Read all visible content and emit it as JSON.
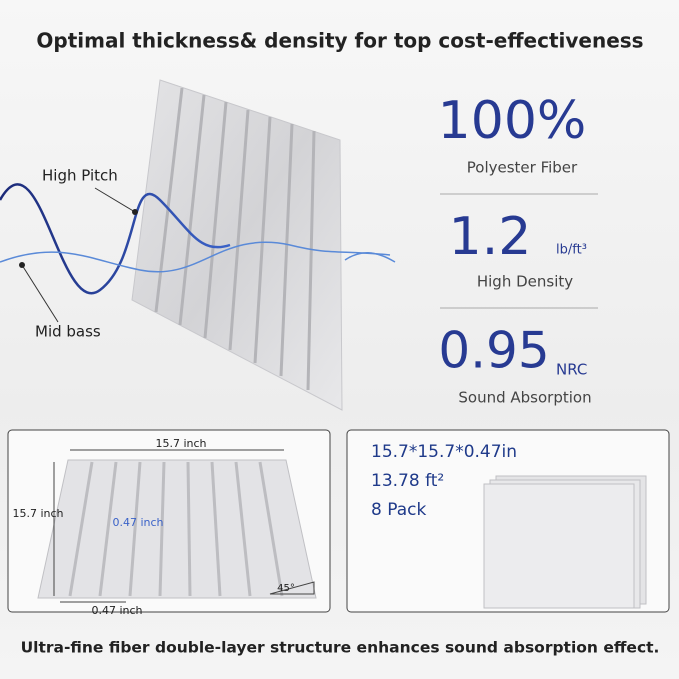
{
  "header": {
    "title": "Optimal thickness& density for top cost-effectiveness"
  },
  "wave_labels": {
    "high": "High Pitch",
    "low": "Mid bass"
  },
  "stats": [
    {
      "value": "100%",
      "label": "Polyester Fiber"
    },
    {
      "value": "1.2",
      "unit": "lb/ft³",
      "label": "High Density"
    },
    {
      "value": "0.95",
      "unit": "NRC",
      "label": "Sound Absorption"
    }
  ],
  "dimensions": {
    "width": "15.7 inch",
    "height": "15.7 inch",
    "groove": "0.47 inch",
    "thickness": "0.47 inch",
    "angle": "45°"
  },
  "package": {
    "size": "15.7*15.7*0.47in",
    "area": "13.78 ft²",
    "count": "8 Pack"
  },
  "footer": {
    "text": "Ultra-fine fiber double-layer structure enhances sound absorption effect."
  }
}
